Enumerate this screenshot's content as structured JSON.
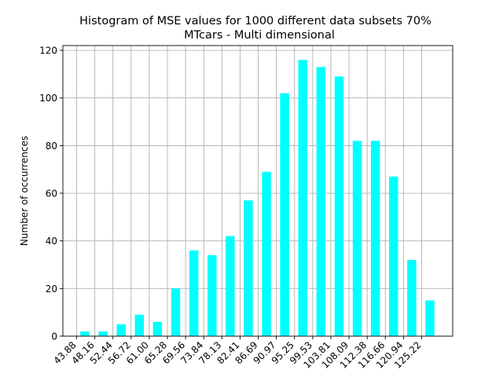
{
  "chart_data": {
    "type": "bar",
    "title": "Histogram of MSE values for 1000 different data subsets 70%",
    "subtitle": "MTcars - Multi dimensional",
    "xlabel": "",
    "ylabel": "Number of occurrences",
    "categories": [
      "43.88",
      "48.16",
      "52.44",
      "56.72",
      "61.00",
      "65.28",
      "69.56",
      "73.84",
      "78.13",
      "82.41",
      "86.69",
      "90.97",
      "95.25",
      "99.53",
      "103.81",
      "108.09",
      "112.38",
      "116.66",
      "120.94",
      "125.22"
    ],
    "values": [
      2,
      2,
      5,
      9,
      6,
      20,
      36,
      34,
      42,
      57,
      69,
      102,
      116,
      113,
      109,
      82,
      82,
      67,
      32,
      15
    ],
    "ylim": [
      0,
      122
    ],
    "yticks": [
      0,
      20,
      40,
      60,
      80,
      100,
      120
    ],
    "bar_color": "#00ffff",
    "grid": true,
    "legend": "none"
  }
}
